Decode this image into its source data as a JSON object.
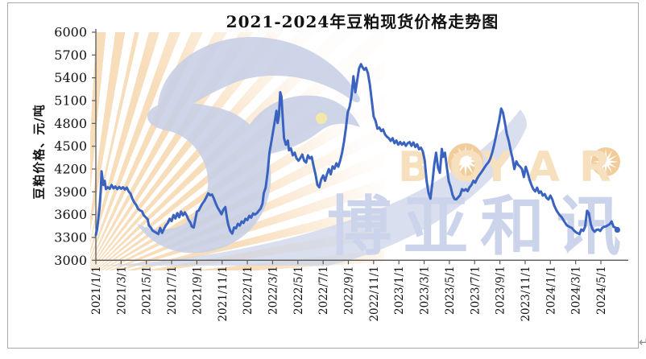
{
  "title": "2021-2024年豆粕现货价格走势图",
  "watermark": {
    "brand_en": "BOYAR",
    "brand_en_parts": [
      "BO",
      "YAR"
    ],
    "brand_cn": "博亚和讯",
    "colors": {
      "bird_blue": "#c9d1e6",
      "cn_text_blue": "#cbd4ea",
      "en_text_orange": "#f7e0be",
      "sun_orange": "#f2cd9c",
      "stripe_orange": "#f3c182",
      "eye_yellow": "#f1e7a5"
    }
  },
  "return_mark": "↵",
  "chart_data": {
    "type": "line",
    "title": "2021-2024年豆粕现货价格走势图",
    "xlabel": "",
    "ylabel": "豆粕价格、元/吨",
    "ylim": [
      3000,
      6000
    ],
    "ytick_step": 300,
    "yticks": [
      6000,
      5700,
      5400,
      5100,
      4800,
      4500,
      4200,
      3900,
      3600,
      3300,
      3000
    ],
    "xticks": [
      "2021/1/1",
      "2021/3/1",
      "2021/5/1",
      "2021/7/1",
      "2021/9/1",
      "2021/11/1",
      "2022/1/1",
      "2022/3/1",
      "2022/5/1",
      "2022/7/1",
      "2022/9/1",
      "2022/11/1",
      "2023/1/1",
      "2023/3/1",
      "2023/5/1",
      "2023/7/1",
      "2023/9/1",
      "2023/11/1",
      "2024/1/1",
      "2024/3/1",
      "2024/5/1"
    ],
    "x_unit": "months_since_2021_01_01",
    "xtick_interval_months": 2,
    "grid": false,
    "legend_position": "none",
    "line_color": "#3a63c0",
    "series": [
      {
        "name": "豆粕现货价格",
        "points": [
          [
            0,
            3330
          ],
          [
            0.1,
            3410
          ],
          [
            0.2,
            3555
          ],
          [
            0.3,
            3700
          ],
          [
            0.38,
            3900
          ],
          [
            0.45,
            4170
          ],
          [
            0.52,
            4080
          ],
          [
            0.6,
            3990
          ],
          [
            0.7,
            4045
          ],
          [
            0.8,
            3935
          ],
          [
            0.95,
            3960
          ],
          [
            1.1,
            3940
          ],
          [
            1.25,
            3990
          ],
          [
            1.4,
            3945
          ],
          [
            1.55,
            3970
          ],
          [
            1.7,
            3935
          ],
          [
            1.85,
            3965
          ],
          [
            2,
            3940
          ],
          [
            2.15,
            3960
          ],
          [
            2.3,
            3930
          ],
          [
            2.45,
            3955
          ],
          [
            2.6,
            3905
          ],
          [
            2.75,
            3875
          ],
          [
            2.9,
            3805
          ],
          [
            3.05,
            3760
          ],
          [
            3.2,
            3725
          ],
          [
            3.35,
            3675
          ],
          [
            3.5,
            3655
          ],
          [
            3.65,
            3645
          ],
          [
            3.8,
            3590
          ],
          [
            3.95,
            3565
          ],
          [
            4.1,
            3540
          ],
          [
            4.2,
            3460
          ],
          [
            4.35,
            3430
          ],
          [
            4.5,
            3390
          ],
          [
            4.65,
            3375
          ],
          [
            4.8,
            3360
          ],
          [
            4.95,
            3345
          ],
          [
            5.1,
            3425
          ],
          [
            5.25,
            3360
          ],
          [
            5.4,
            3415
          ],
          [
            5.55,
            3460
          ],
          [
            5.7,
            3490
          ],
          [
            5.85,
            3545
          ],
          [
            6,
            3515
          ],
          [
            6.15,
            3595
          ],
          [
            6.3,
            3550
          ],
          [
            6.45,
            3620
          ],
          [
            6.6,
            3565
          ],
          [
            6.75,
            3640
          ],
          [
            6.9,
            3590
          ],
          [
            7.05,
            3630
          ],
          [
            7.2,
            3585
          ],
          [
            7.35,
            3530
          ],
          [
            7.5,
            3490
          ],
          [
            7.6,
            3445
          ],
          [
            7.75,
            3430
          ],
          [
            7.9,
            3550
          ],
          [
            8,
            3640
          ],
          [
            8.15,
            3655
          ],
          [
            8.3,
            3705
          ],
          [
            8.45,
            3750
          ],
          [
            8.6,
            3780
          ],
          [
            8.75,
            3830
          ],
          [
            8.9,
            3880
          ],
          [
            9.05,
            3855
          ],
          [
            9.2,
            3865
          ],
          [
            9.35,
            3810
          ],
          [
            9.5,
            3745
          ],
          [
            9.65,
            3690
          ],
          [
            9.8,
            3650
          ],
          [
            9.95,
            3605
          ],
          [
            10.1,
            3665
          ],
          [
            10.25,
            3700
          ],
          [
            10.4,
            3540
          ],
          [
            10.5,
            3460
          ],
          [
            10.65,
            3385
          ],
          [
            10.8,
            3350
          ],
          [
            10.95,
            3430
          ],
          [
            11.1,
            3420
          ],
          [
            11.25,
            3480
          ],
          [
            11.4,
            3455
          ],
          [
            11.55,
            3510
          ],
          [
            11.7,
            3490
          ],
          [
            11.85,
            3545
          ],
          [
            12,
            3530
          ],
          [
            12.15,
            3585
          ],
          [
            12.3,
            3560
          ],
          [
            12.45,
            3615
          ],
          [
            12.6,
            3600
          ],
          [
            12.75,
            3620
          ],
          [
            12.9,
            3650
          ],
          [
            13.05,
            3680
          ],
          [
            13.2,
            3745
          ],
          [
            13.3,
            3885
          ],
          [
            13.45,
            3955
          ],
          [
            13.6,
            4150
          ],
          [
            13.75,
            4415
          ],
          [
            13.9,
            4560
          ],
          [
            14.05,
            4705
          ],
          [
            14.2,
            4855
          ],
          [
            14.3,
            4965
          ],
          [
            14.4,
            4805
          ],
          [
            14.5,
            4905
          ],
          [
            14.6,
            5210
          ],
          [
            14.7,
            5150
          ],
          [
            14.8,
            4870
          ],
          [
            14.9,
            4605
          ],
          [
            15.05,
            4520
          ],
          [
            15.2,
            4575
          ],
          [
            15.3,
            4445
          ],
          [
            15.45,
            4470
          ],
          [
            15.6,
            4380
          ],
          [
            15.75,
            4415
          ],
          [
            15.9,
            4340
          ],
          [
            16.05,
            4310
          ],
          [
            16.2,
            4345
          ],
          [
            16.35,
            4390
          ],
          [
            16.5,
            4310
          ],
          [
            16.65,
            4285
          ],
          [
            16.8,
            4380
          ],
          [
            16.95,
            4340
          ],
          [
            17.1,
            4360
          ],
          [
            17.25,
            4235
          ],
          [
            17.4,
            4130
          ],
          [
            17.55,
            3990
          ],
          [
            17.7,
            3960
          ],
          [
            17.85,
            4065
          ],
          [
            18,
            4115
          ],
          [
            18.15,
            4045
          ],
          [
            18.3,
            4130
          ],
          [
            18.45,
            4200
          ],
          [
            18.6,
            4130
          ],
          [
            18.75,
            4235
          ],
          [
            18.9,
            4205
          ],
          [
            19.05,
            4275
          ],
          [
            19.2,
            4230
          ],
          [
            19.35,
            4310
          ],
          [
            19.5,
            4415
          ],
          [
            19.65,
            4555
          ],
          [
            19.8,
            4735
          ],
          [
            19.95,
            4945
          ],
          [
            20.1,
            5020
          ],
          [
            20.25,
            5160
          ],
          [
            20.4,
            5420
          ],
          [
            20.55,
            5210
          ],
          [
            20.7,
            5370
          ],
          [
            20.85,
            5525
          ],
          [
            21,
            5580
          ],
          [
            21.1,
            5545
          ],
          [
            21.25,
            5505
          ],
          [
            21.4,
            5530
          ],
          [
            21.55,
            5460
          ],
          [
            21.7,
            5315
          ],
          [
            21.85,
            5105
          ],
          [
            22,
            4890
          ],
          [
            22.15,
            4835
          ],
          [
            22.3,
            4730
          ],
          [
            22.45,
            4745
          ],
          [
            22.6,
            4700
          ],
          [
            22.75,
            4720
          ],
          [
            22.9,
            4655
          ],
          [
            23.05,
            4625
          ],
          [
            23.2,
            4605
          ],
          [
            23.35,
            4570
          ],
          [
            23.5,
            4605
          ],
          [
            23.65,
            4540
          ],
          [
            23.8,
            4575
          ],
          [
            23.95,
            4520
          ],
          [
            24.1,
            4555
          ],
          [
            24.25,
            4520
          ],
          [
            24.4,
            4550
          ],
          [
            24.55,
            4505
          ],
          [
            24.7,
            4540
          ],
          [
            24.85,
            4555
          ],
          [
            25,
            4505
          ],
          [
            25.15,
            4550
          ],
          [
            25.3,
            4490
          ],
          [
            25.45,
            4525
          ],
          [
            25.6,
            4460
          ],
          [
            25.75,
            4480
          ],
          [
            25.9,
            4430
          ],
          [
            26.05,
            4310
          ],
          [
            26.2,
            4040
          ],
          [
            26.35,
            3885
          ],
          [
            26.5,
            3810
          ],
          [
            26.65,
            4010
          ],
          [
            26.8,
            4255
          ],
          [
            26.95,
            4415
          ],
          [
            27.1,
            4220
          ],
          [
            27.25,
            4150
          ],
          [
            27.4,
            4465
          ],
          [
            27.5,
            4360
          ],
          [
            27.65,
            4415
          ],
          [
            27.8,
            4220
          ],
          [
            27.95,
            4040
          ],
          [
            28.1,
            3965
          ],
          [
            28.25,
            3860
          ],
          [
            28.4,
            3805
          ],
          [
            28.55,
            3800
          ],
          [
            28.7,
            3830
          ],
          [
            28.85,
            3855
          ],
          [
            29,
            3935
          ],
          [
            29.15,
            3915
          ],
          [
            29.3,
            3935
          ],
          [
            29.45,
            3910
          ],
          [
            29.6,
            3960
          ],
          [
            29.75,
            3990
          ],
          [
            29.9,
            4045
          ],
          [
            30.05,
            4020
          ],
          [
            30.2,
            4075
          ],
          [
            30.35,
            4115
          ],
          [
            30.5,
            4150
          ],
          [
            30.65,
            4185
          ],
          [
            30.8,
            4225
          ],
          [
            30.95,
            4260
          ],
          [
            31.1,
            4290
          ],
          [
            31.25,
            4340
          ],
          [
            31.4,
            4420
          ],
          [
            31.55,
            4520
          ],
          [
            31.7,
            4640
          ],
          [
            31.85,
            4760
          ],
          [
            31.95,
            4840
          ],
          [
            32.1,
            4995
          ],
          [
            32.25,
            4940
          ],
          [
            32.4,
            4805
          ],
          [
            32.55,
            4660
          ],
          [
            32.7,
            4570
          ],
          [
            32.85,
            4450
          ],
          [
            33,
            4340
          ],
          [
            33.15,
            4200
          ],
          [
            33.3,
            4300
          ],
          [
            33.45,
            4255
          ],
          [
            33.6,
            4230
          ],
          [
            33.75,
            4200
          ],
          [
            33.9,
            4095
          ],
          [
            34.05,
            4230
          ],
          [
            34.2,
            4150
          ],
          [
            34.35,
            4060
          ],
          [
            34.5,
            3990
          ],
          [
            34.65,
            3935
          ],
          [
            34.8,
            3905
          ],
          [
            34.95,
            3955
          ],
          [
            35.1,
            3885
          ],
          [
            35.25,
            3905
          ],
          [
            35.4,
            3850
          ],
          [
            35.55,
            3870
          ],
          [
            35.7,
            3820
          ],
          [
            35.85,
            3800
          ],
          [
            36,
            3850
          ],
          [
            36.15,
            3800
          ],
          [
            36.3,
            3720
          ],
          [
            36.5,
            3650
          ],
          [
            36.7,
            3600
          ],
          [
            36.9,
            3565
          ],
          [
            37.1,
            3510
          ],
          [
            37.3,
            3460
          ],
          [
            37.5,
            3440
          ],
          [
            37.7,
            3425
          ],
          [
            37.9,
            3385
          ],
          [
            38.1,
            3360
          ],
          [
            38.3,
            3345
          ],
          [
            38.45,
            3405
          ],
          [
            38.6,
            3385
          ],
          [
            38.75,
            3440
          ],
          [
            38.9,
            3650
          ],
          [
            39.05,
            3620
          ],
          [
            39.2,
            3470
          ],
          [
            39.35,
            3405
          ],
          [
            39.5,
            3375
          ],
          [
            39.65,
            3400
          ],
          [
            39.8,
            3405
          ],
          [
            39.95,
            3385
          ],
          [
            40.1,
            3425
          ],
          [
            40.25,
            3440
          ],
          [
            40.4,
            3445
          ],
          [
            40.55,
            3460
          ],
          [
            40.7,
            3475
          ],
          [
            40.85,
            3510
          ],
          [
            41,
            3440
          ],
          [
            41.15,
            3430
          ],
          [
            41.3,
            3400
          ]
        ]
      }
    ]
  }
}
